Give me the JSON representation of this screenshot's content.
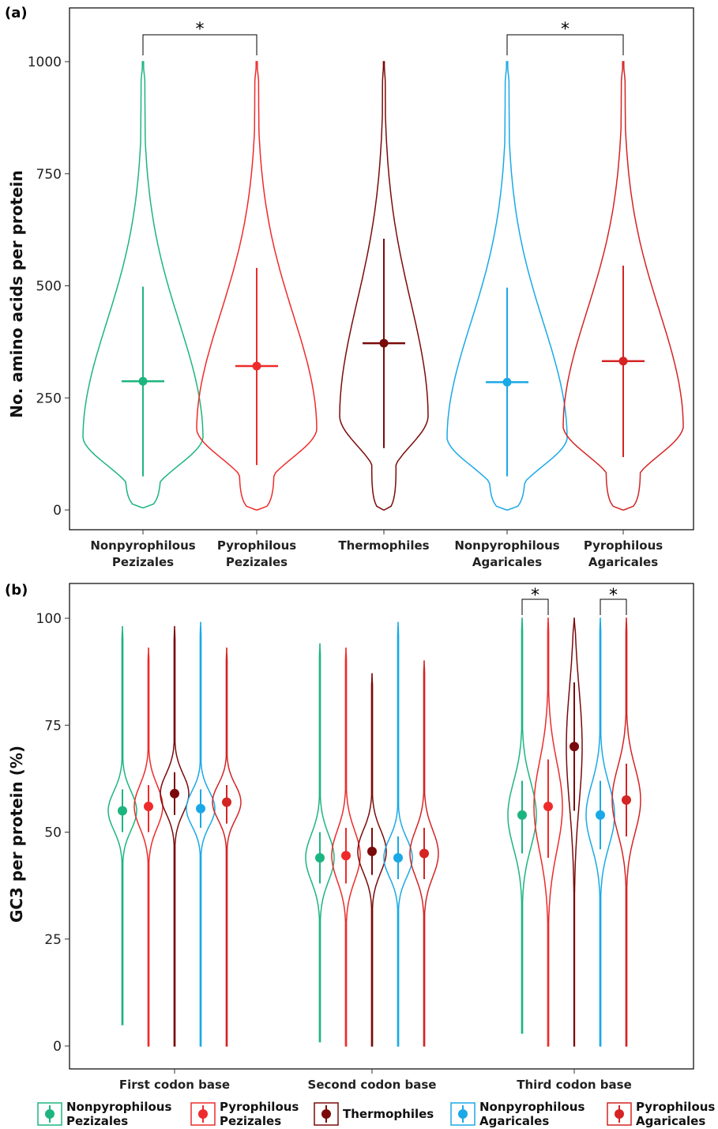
{
  "chart_data": [
    {
      "panel_label": "(a)",
      "type": "violin",
      "ylabel": "No. amino acids per protein",
      "ylim": [
        0,
        1000
      ],
      "yticks": [
        "0",
        "250",
        "500",
        "750",
        "1000"
      ],
      "categories": [
        {
          "line1": "Nonpyrophilous",
          "line2": "Pezizales"
        },
        {
          "line1": "Pyrophilous",
          "line2": "Pezizales"
        },
        {
          "line1": "Thermophiles",
          "line2": ""
        },
        {
          "line1": "Nonpyrophilous",
          "line2": "Agaricales"
        },
        {
          "line1": "Pyrophilous",
          "line2": "Agaricales"
        }
      ],
      "series": [
        {
          "name": "Nonpyrophilous Pezizales",
          "color": "#1DB57F",
          "min": 5,
          "max": 1000,
          "median": 287,
          "lower": 75,
          "upper": 498
        },
        {
          "name": "Pyrophilous Pezizales",
          "color": "#EE2B2B",
          "min": 0,
          "max": 1000,
          "median": 321,
          "lower": 100,
          "upper": 540
        },
        {
          "name": "Thermophiles",
          "color": "#7A0A0A",
          "min": 0,
          "max": 1000,
          "median": 372,
          "lower": 138,
          "upper": 605
        },
        {
          "name": "Nonpyrophilous Agaricales",
          "color": "#1AA9E6",
          "min": 0,
          "max": 1000,
          "median": 285,
          "lower": 75,
          "upper": 496
        },
        {
          "name": "Pyrophilous Agaricales",
          "color": "#D42424",
          "min": 0,
          "max": 1000,
          "median": 332,
          "lower": 118,
          "upper": 545
        }
      ],
      "significance": [
        {
          "from": 0,
          "to": 1,
          "label": "*"
        },
        {
          "from": 3,
          "to": 4,
          "label": "*"
        }
      ]
    },
    {
      "panel_label": "(b)",
      "type": "violin",
      "ylabel": "GC3 per protein (%)",
      "ylim": [
        0,
        100
      ],
      "yticks": [
        "0",
        "25",
        "50",
        "75",
        "100"
      ],
      "groups": [
        "First codon base",
        "Second codon base",
        "Third codon base"
      ],
      "series": [
        {
          "name": "Nonpyrophilous Pezizales",
          "color": "#1DB57F",
          "groups": [
            {
              "median": 55,
              "lower": 50,
              "upper": 60,
              "min": 5,
              "max": 98
            },
            {
              "median": 44,
              "lower": 38,
              "upper": 50,
              "min": 1,
              "max": 94
            },
            {
              "median": 54,
              "lower": 45,
              "upper": 62,
              "min": 3,
              "max": 100
            }
          ]
        },
        {
          "name": "Pyrophilous Pezizales",
          "color": "#EE2B2B",
          "groups": [
            {
              "median": 56,
              "lower": 50,
              "upper": 61,
              "min": 0,
              "max": 93
            },
            {
              "median": 44.5,
              "lower": 38,
              "upper": 51,
              "min": 0,
              "max": 93
            },
            {
              "median": 56,
              "lower": 44,
              "upper": 67,
              "min": 0,
              "max": 100
            }
          ]
        },
        {
          "name": "Thermophiles",
          "color": "#7A0A0A",
          "groups": [
            {
              "median": 59,
              "lower": 54,
              "upper": 64,
              "min": 0,
              "max": 98
            },
            {
              "median": 45.5,
              "lower": 40,
              "upper": 51,
              "min": 0,
              "max": 87
            },
            {
              "median": 70,
              "lower": 55,
              "upper": 85,
              "min": 0,
              "max": 100
            }
          ]
        },
        {
          "name": "Nonpyrophilous Agaricales",
          "color": "#1AA9E6",
          "groups": [
            {
              "median": 55.5,
              "lower": 51,
              "upper": 60,
              "min": 0,
              "max": 99
            },
            {
              "median": 44,
              "lower": 39,
              "upper": 49,
              "min": 0,
              "max": 99
            },
            {
              "median": 54,
              "lower": 46,
              "upper": 62,
              "min": 0,
              "max": 100
            }
          ]
        },
        {
          "name": "Pyrophilous Agaricales",
          "color": "#D42424",
          "groups": [
            {
              "median": 57,
              "lower": 52,
              "upper": 61,
              "min": 0,
              "max": 93
            },
            {
              "median": 45,
              "lower": 39,
              "upper": 51,
              "min": 0,
              "max": 90
            },
            {
              "median": 57.5,
              "lower": 49,
              "upper": 66,
              "min": 0,
              "max": 100
            }
          ]
        }
      ],
      "significance": [
        {
          "group": 2,
          "from": 0,
          "to": 1,
          "label": "*"
        },
        {
          "group": 2,
          "from": 3,
          "to": 4,
          "label": "*"
        }
      ]
    }
  ],
  "legend": {
    "placement": "bottom",
    "items": [
      {
        "line1": "Nonpyrophilous",
        "line2": "Pezizales",
        "color": "#1DB57F"
      },
      {
        "line1": "Pyrophilous",
        "line2": "Pezizales",
        "color": "#EE2B2B"
      },
      {
        "line1": "Thermophiles",
        "line2": "",
        "color": "#7A0A0A"
      },
      {
        "line1": "Nonpyrophilous",
        "line2": "Agaricales",
        "color": "#1AA9E6"
      },
      {
        "line1": "Pyrophilous",
        "line2": "Agaricales",
        "color": "#D42424"
      }
    ]
  }
}
